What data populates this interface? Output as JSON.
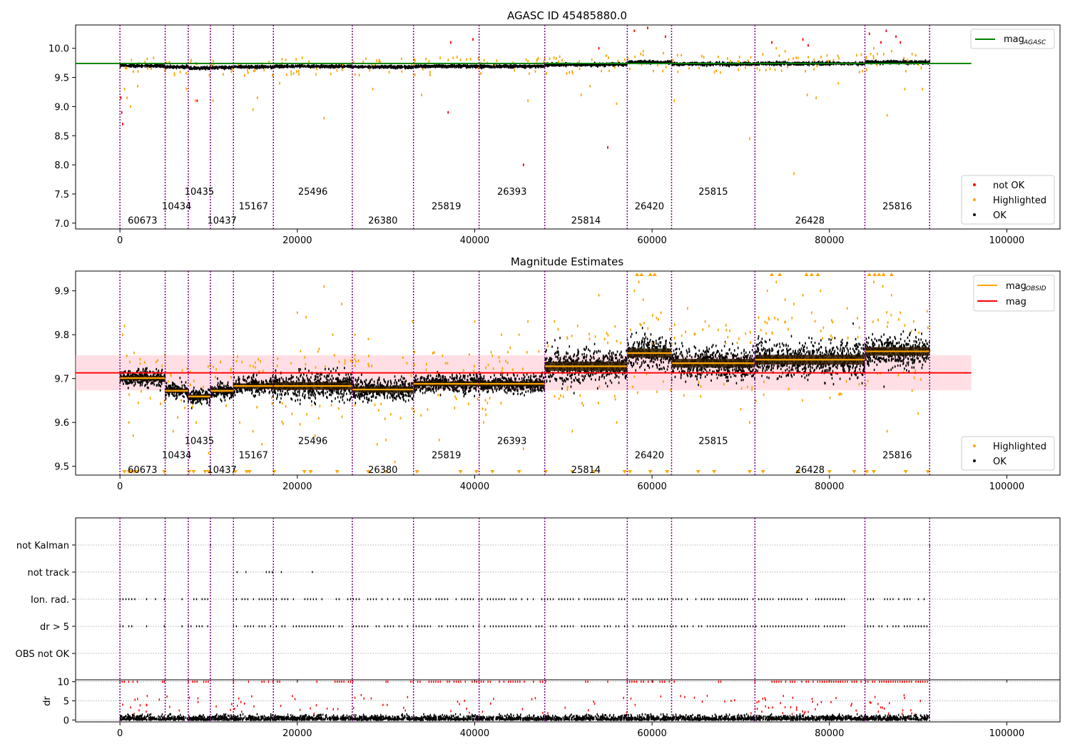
{
  "colors": {
    "ok": "#000000",
    "highlighted": "#ffa500",
    "not_ok": "#ff0000",
    "mag_agasc": "#008000",
    "mag_obsid": "#ffa500",
    "mag": "#ff0000",
    "obs_line": "#800080",
    "band": "#ffc0cb"
  },
  "chart_data": [
    {
      "type": "scatter",
      "title": "AGASC ID 45485880.0",
      "xlim": [
        -5000,
        106000
      ],
      "ylim": [
        6.9,
        10.4
      ],
      "xticks": [
        0,
        20000,
        40000,
        60000,
        80000,
        100000
      ],
      "yticks": [
        7.0,
        7.5,
        8.0,
        8.5,
        9.0,
        9.5,
        10.0
      ],
      "grid": false,
      "legend_top": {
        "placement": "top-right",
        "entries": [
          {
            "label": "mag",
            "sub": "AGASC",
            "type": "line",
            "color": "#008000"
          }
        ]
      },
      "legend_bottom": {
        "placement": "bottom-right",
        "entries": [
          {
            "label": "not OK",
            "type": "dot",
            "color": "#ff0000"
          },
          {
            "label": "Highlighted",
            "type": "dot",
            "color": "#ffa500"
          },
          {
            "label": "OK",
            "type": "dot",
            "color": "#000000"
          }
        ]
      },
      "mag_agasc": {
        "value": 9.74,
        "x_range": [
          -5000,
          96000
        ]
      },
      "segments": [
        {
          "obsid": "60673",
          "start": 0,
          "end": 5100,
          "level": 9.7,
          "spread": 0.02,
          "label_row": 0
        },
        {
          "obsid": "10434",
          "start": 5100,
          "end": 7700,
          "level": 9.68,
          "spread": 0.02,
          "label_row": 1
        },
        {
          "obsid": "10435",
          "start": 7700,
          "end": 10200,
          "level": 9.66,
          "spread": 0.02,
          "label_row": 2
        },
        {
          "obsid": "10437",
          "start": 10200,
          "end": 12800,
          "level": 9.67,
          "spread": 0.02,
          "label_row": 0
        },
        {
          "obsid": "15167",
          "start": 12800,
          "end": 17300,
          "level": 9.68,
          "spread": 0.02,
          "label_row": 1
        },
        {
          "obsid": "25496",
          "start": 17300,
          "end": 26200,
          "level": 9.69,
          "spread": 0.02,
          "label_row": 2
        },
        {
          "obsid": "26380",
          "start": 26200,
          "end": 33100,
          "level": 9.68,
          "spread": 0.02,
          "label_row": 0
        },
        {
          "obsid": "25819",
          "start": 33100,
          "end": 40500,
          "level": 9.69,
          "spread": 0.02,
          "label_row": 1
        },
        {
          "obsid": "26393",
          "start": 40500,
          "end": 47900,
          "level": 9.69,
          "spread": 0.02,
          "label_row": 2
        },
        {
          "obsid": "25814",
          "start": 47900,
          "end": 57200,
          "level": 9.72,
          "spread": 0.025,
          "label_row": 0
        },
        {
          "obsid": "26420",
          "start": 57200,
          "end": 62200,
          "level": 9.76,
          "spread": 0.025,
          "label_row": 1
        },
        {
          "obsid": "25815",
          "start": 62200,
          "end": 71600,
          "level": 9.73,
          "spread": 0.025,
          "label_row": 2
        },
        {
          "obsid": "26428",
          "start": 71600,
          "end": 84000,
          "level": 9.74,
          "spread": 0.025,
          "label_row": 0
        },
        {
          "obsid": "25816",
          "start": 84000,
          "end": 91300,
          "level": 9.76,
          "spread": 0.025,
          "label_row": 1
        }
      ],
      "label_rows_y": [
        7.05,
        7.3,
        7.55
      ],
      "outliers_highlighted": [
        [
          500,
          9.3
        ],
        [
          800,
          9.15
        ],
        [
          1200,
          9.0
        ],
        [
          1500,
          9.6
        ],
        [
          2000,
          9.35
        ],
        [
          7500,
          9.3
        ],
        [
          8500,
          9.1
        ],
        [
          10500,
          9.1
        ],
        [
          15000,
          8.95
        ],
        [
          15500,
          9.15
        ],
        [
          18000,
          9.4
        ],
        [
          23000,
          8.8
        ],
        [
          26500,
          9.55
        ],
        [
          28500,
          9.3
        ],
        [
          34000,
          9.2
        ],
        [
          38000,
          9.85
        ],
        [
          46000,
          9.1
        ],
        [
          47000,
          9.8
        ],
        [
          52000,
          9.2
        ],
        [
          53000,
          9.35
        ],
        [
          56000,
          9.05
        ],
        [
          59000,
          9.95
        ],
        [
          62500,
          9.1
        ],
        [
          71000,
          8.45
        ],
        [
          76000,
          7.85
        ],
        [
          77500,
          9.2
        ],
        [
          78500,
          9.15
        ],
        [
          81000,
          9.4
        ],
        [
          86500,
          8.85
        ],
        [
          88500,
          9.3
        ],
        [
          90500,
          9.3
        ],
        [
          74000,
          10.0
        ],
        [
          75000,
          9.95
        ],
        [
          85000,
          10.0
        ],
        [
          87000,
          9.95
        ]
      ],
      "outliers_not_ok": [
        [
          100,
          9.15
        ],
        [
          200,
          8.9
        ],
        [
          300,
          8.7
        ],
        [
          8700,
          9.1
        ],
        [
          37000,
          8.9
        ],
        [
          37300,
          10.1
        ],
        [
          39800,
          10.15
        ],
        [
          45500,
          8.0
        ],
        [
          55000,
          8.3
        ],
        [
          54000,
          10.0
        ],
        [
          58000,
          10.3
        ],
        [
          59500,
          10.35
        ],
        [
          61500,
          10.2
        ],
        [
          73500,
          10.1
        ],
        [
          77000,
          10.15
        ],
        [
          77600,
          10.05
        ],
        [
          84500,
          10.25
        ],
        [
          85800,
          10.1
        ],
        [
          86400,
          10.3
        ],
        [
          87500,
          10.2
        ],
        [
          88000,
          10.1
        ]
      ]
    },
    {
      "type": "scatter",
      "title": "Magnitude Estimates",
      "xlim": [
        -5000,
        106000
      ],
      "ylim": [
        9.48,
        9.945
      ],
      "xticks": [
        0,
        20000,
        40000,
        60000,
        80000,
        100000
      ],
      "yticks": [
        9.5,
        9.6,
        9.7,
        9.8,
        9.9
      ],
      "grid": false,
      "legend_top": {
        "placement": "top-right",
        "entries": [
          {
            "label": "mag",
            "sub": "OBSID",
            "type": "line",
            "color": "#ffa500"
          },
          {
            "label": "mag",
            "type": "line",
            "color": "#ff0000"
          }
        ]
      },
      "legend_bottom": {
        "placement": "bottom-right",
        "entries": [
          {
            "label": "Highlighted",
            "type": "dot",
            "color": "#ffa500"
          },
          {
            "label": "OK",
            "type": "dot",
            "color": "#000000"
          }
        ]
      },
      "mag": {
        "value": 9.713,
        "band": [
          9.673,
          9.753
        ],
        "x_range": [
          -5000,
          96000
        ]
      },
      "segments": [
        {
          "obsid": "60673",
          "start": 0,
          "end": 5100,
          "level": 9.701,
          "spread": 0.015,
          "label_row": 0
        },
        {
          "obsid": "10434",
          "start": 5100,
          "end": 7700,
          "level": 9.672,
          "spread": 0.013,
          "label_row": 1
        },
        {
          "obsid": "10435",
          "start": 7700,
          "end": 10200,
          "level": 9.659,
          "spread": 0.014,
          "label_row": 2
        },
        {
          "obsid": "10437",
          "start": 10200,
          "end": 12800,
          "level": 9.672,
          "spread": 0.014,
          "label_row": 0
        },
        {
          "obsid": "15167",
          "start": 12800,
          "end": 17300,
          "level": 9.683,
          "spread": 0.017,
          "label_row": 1
        },
        {
          "obsid": "25496",
          "start": 17300,
          "end": 26200,
          "level": 9.683,
          "spread": 0.025,
          "label_row": 2
        },
        {
          "obsid": "26380",
          "start": 26200,
          "end": 33100,
          "level": 9.675,
          "spread": 0.02,
          "label_row": 0
        },
        {
          "obsid": "25819",
          "start": 33100,
          "end": 40500,
          "level": 9.688,
          "spread": 0.016,
          "label_row": 1
        },
        {
          "obsid": "26393",
          "start": 40500,
          "end": 47900,
          "level": 9.688,
          "spread": 0.016,
          "label_row": 2
        },
        {
          "obsid": "25814",
          "start": 47900,
          "end": 57200,
          "level": 9.728,
          "spread": 0.03,
          "label_row": 0
        },
        {
          "obsid": "26420",
          "start": 57200,
          "end": 62200,
          "level": 9.758,
          "spread": 0.03,
          "label_row": 1
        },
        {
          "obsid": "25815",
          "start": 62200,
          "end": 71600,
          "level": 9.735,
          "spread": 0.028,
          "label_row": 2
        },
        {
          "obsid": "26428",
          "start": 71600,
          "end": 84000,
          "level": 9.743,
          "spread": 0.032,
          "label_row": 0
        },
        {
          "obsid": "25816",
          "start": 84000,
          "end": 91300,
          "level": 9.762,
          "spread": 0.028,
          "label_row": 1
        }
      ],
      "label_rows_y": [
        9.493,
        9.526,
        9.559
      ],
      "outliers_highlighted": [
        [
          300,
          9.8
        ],
        [
          500,
          9.82
        ],
        [
          1500,
          9.57
        ],
        [
          1000,
          9.6
        ],
        [
          6000,
          9.58
        ],
        [
          10000,
          9.53
        ],
        [
          13500,
          9.6
        ],
        [
          15000,
          9.58
        ],
        [
          16000,
          9.55
        ],
        [
          20000,
          9.85
        ],
        [
          21000,
          9.84
        ],
        [
          23000,
          9.91
        ],
        [
          24000,
          9.8
        ],
        [
          25000,
          9.87
        ],
        [
          22000,
          9.57
        ],
        [
          26500,
          9.8
        ],
        [
          28000,
          9.79
        ],
        [
          29000,
          9.55
        ],
        [
          30000,
          9.56
        ],
        [
          31000,
          9.51
        ],
        [
          33000,
          9.83
        ],
        [
          36000,
          9.56
        ],
        [
          40000,
          9.83
        ],
        [
          41000,
          9.6
        ],
        [
          43000,
          9.8
        ],
        [
          44000,
          9.77
        ],
        [
          45000,
          9.8
        ],
        [
          46000,
          9.83
        ],
        [
          45500,
          9.54
        ],
        [
          49000,
          9.83
        ],
        [
          51000,
          9.58
        ],
        [
          54000,
          9.89
        ],
        [
          56000,
          9.6
        ],
        [
          58000,
          9.9
        ],
        [
          58500,
          9.92
        ],
        [
          59000,
          9.88
        ],
        [
          60000,
          9.78
        ],
        [
          61000,
          9.85
        ],
        [
          64000,
          9.86
        ],
        [
          66000,
          9.83
        ],
        [
          70000,
          9.63
        ],
        [
          71000,
          9.6
        ],
        [
          73000,
          9.9
        ],
        [
          74000,
          9.92
        ],
        [
          75000,
          9.88
        ],
        [
          76000,
          9.87
        ],
        [
          77000,
          9.89
        ],
        [
          78000,
          9.85
        ],
        [
          79000,
          9.9
        ],
        [
          82000,
          9.86
        ],
        [
          85000,
          9.92
        ],
        [
          86000,
          9.91
        ],
        [
          87000,
          9.89
        ],
        [
          88000,
          9.85
        ],
        [
          89500,
          9.83
        ],
        [
          86500,
          9.58
        ],
        [
          90000,
          9.62
        ]
      ],
      "clipped_low": [
        500,
        1000,
        1300,
        1600,
        2000,
        5000,
        7800,
        8300,
        9600,
        10000,
        13000,
        14300,
        14600,
        17400,
        20800,
        21500,
        24500,
        28000,
        30000,
        33500,
        38400,
        40200,
        42000,
        45000,
        48000,
        51000,
        53500,
        56900,
        57500,
        59800,
        61700,
        65200,
        67000,
        71000,
        72500,
        76500,
        80000,
        82800,
        84200,
        85000,
        88600,
        91100
      ],
      "clipped_high": [
        58300,
        58800,
        59800,
        60300,
        73500,
        74400,
        77400,
        78000,
        78700,
        84500,
        85100,
        85600,
        86100,
        87000
      ]
    },
    {
      "type": "scatter",
      "title": "",
      "xlim": [
        -5000,
        106000
      ],
      "categories": [
        "not Kalman",
        "not track",
        "Ion. rad.",
        "dr > 5",
        "OBS not OK"
      ],
      "grid": true,
      "rows": [
        {
          "name": "not Kalman",
          "ranges": [
            [
              10200,
              10400
            ],
            [
              47900,
              48000
            ],
            [
              91300,
              91400
            ]
          ]
        },
        {
          "name": "not track",
          "ranges": [
            [
              13200,
              13600
            ],
            [
              14200,
              14500
            ],
            [
              16500,
              17500
            ],
            [
              18200,
              18500
            ],
            [
              21700,
              22000
            ],
            [
              79000,
              79300
            ]
          ]
        },
        {
          "name": "Ion. rad.",
          "ranges": [
            [
              0,
              2000
            ],
            [
              3000,
              3300
            ],
            [
              4000,
              4300
            ],
            [
              5000,
              5300
            ],
            [
              7000,
              7400
            ],
            [
              7700,
              10200
            ],
            [
              12800,
              82000
            ],
            [
              84000,
              91300
            ]
          ]
        },
        {
          "name": "dr > 5",
          "ranges": [
            [
              0,
              2000
            ],
            [
              3000,
              3300
            ],
            [
              4000,
              4300
            ],
            [
              5000,
              5300
            ],
            [
              7000,
              7400
            ],
            [
              7700,
              10200
            ],
            [
              12800,
              82000
            ],
            [
              84000,
              91300
            ]
          ]
        },
        {
          "name": "OBS not OK",
          "ranges": []
        }
      ]
    },
    {
      "type": "scatter",
      "title": "",
      "ylabel": "dr",
      "xlim": [
        -5000,
        106000
      ],
      "ylim": [
        -0.5,
        10.5
      ],
      "xticks": [
        0,
        20000,
        40000,
        60000,
        80000,
        100000
      ],
      "yticks": [
        0,
        5,
        10
      ],
      "grid": true,
      "clip_value": 10,
      "typical_max": 1.5
    }
  ]
}
